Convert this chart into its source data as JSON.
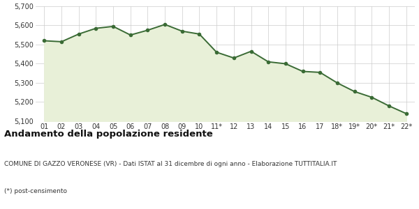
{
  "x_labels": [
    "01",
    "02",
    "03",
    "04",
    "05",
    "06",
    "07",
    "08",
    "09",
    "10",
    "11*",
    "12",
    "13",
    "14",
    "15",
    "16",
    "17",
    "18*",
    "19*",
    "20*",
    "21*",
    "22*"
  ],
  "y_values": [
    5520,
    5515,
    5555,
    5585,
    5595,
    5550,
    5575,
    5605,
    5570,
    5555,
    5460,
    5430,
    5465,
    5410,
    5400,
    5360,
    5355,
    5300,
    5255,
    5225,
    5180,
    5140
  ],
  "line_color": "#3a6b35",
  "fill_color": "#e8f0d8",
  "marker": "o",
  "marker_size": 3,
  "line_width": 1.4,
  "ylim": [
    5100,
    5700
  ],
  "yticks": [
    5100,
    5200,
    5300,
    5400,
    5500,
    5600,
    5700
  ],
  "grid_color": "#cccccc",
  "background_color": "#ffffff",
  "title": "Andamento della popolazione residente",
  "title_fontsize": 9.5,
  "subtitle": "COMUNE DI GAZZO VERONESE (VR) - Dati ISTAT al 31 dicembre di ogni anno - Elaborazione TUTTITALIA.IT",
  "subtitle_fontsize": 6.5,
  "footnote": "(*) post-censimento",
  "footnote_fontsize": 6.5,
  "xlabel_fontsize": 7,
  "ylabel_fontsize": 7
}
